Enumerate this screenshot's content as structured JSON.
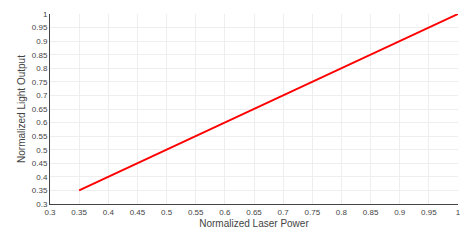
{
  "chart_data": {
    "type": "line",
    "x": [
      0.35,
      1.0
    ],
    "series": [
      {
        "values": [
          0.35,
          1.0
        ],
        "color": "#ff0000"
      }
    ],
    "xlabel": "Normalized Laser Power",
    "ylabel": "Normalized Light Output",
    "xlim": [
      0.3,
      1.0
    ],
    "ylim": [
      0.3,
      1.0
    ],
    "xticks": [
      0.3,
      0.35,
      0.4,
      0.45,
      0.5,
      0.55,
      0.6,
      0.65,
      0.7,
      0.75,
      0.8,
      0.85,
      0.9,
      0.95,
      1
    ],
    "yticks": [
      0.3,
      0.35,
      0.4,
      0.45,
      0.5,
      0.55,
      0.6,
      0.65,
      0.7,
      0.75,
      0.8,
      0.85,
      0.9,
      0.95,
      1
    ],
    "grid": true
  }
}
